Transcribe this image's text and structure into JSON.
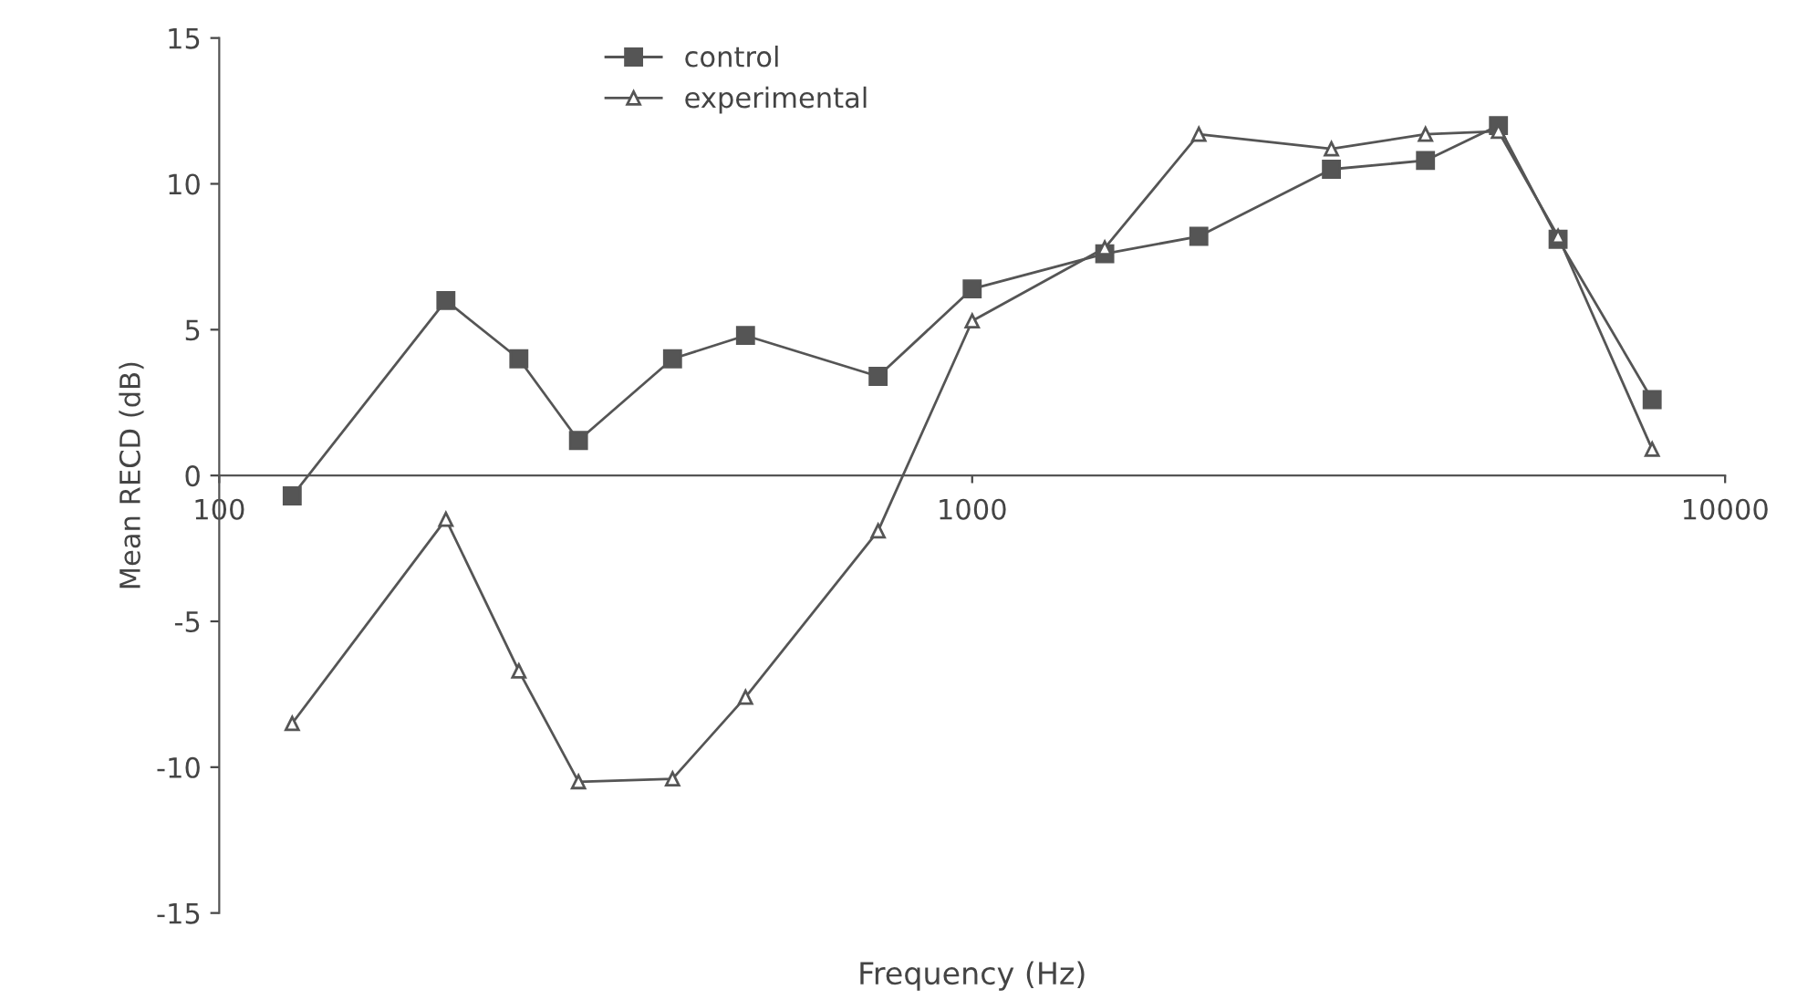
{
  "chart_data": {
    "type": "line",
    "xlabel": "Frequency (Hz)",
    "ylabel": "Mean RECD (dB)",
    "log": "x",
    "xlim": [
      100,
      10000
    ],
    "xticks": [
      100,
      1000,
      10000
    ],
    "ylim": [
      -15,
      15
    ],
    "yticks": [
      -15,
      -10,
      -5,
      0,
      5,
      10,
      15
    ],
    "grid": false,
    "legend": "top left",
    "line_style": "solid",
    "series": [
      {
        "name": "control",
        "color": "#555555",
        "marker": "square",
        "x": [
          125,
          200,
          250,
          300,
          400,
          500,
          750,
          1000,
          1500,
          2000,
          3000,
          4000,
          5000,
          6000,
          8000
        ],
        "values": [
          -0.7,
          6.0,
          4.0,
          1.2,
          4.0,
          4.8,
          3.4,
          6.4,
          7.6,
          8.2,
          10.5,
          10.8,
          12.0,
          8.1,
          2.6
        ]
      },
      {
        "name": "experimental",
        "color": "#555555",
        "marker": "triangle",
        "x": [
          125,
          200,
          250,
          300,
          400,
          500,
          750,
          1000,
          1500,
          2000,
          3000,
          4000,
          5000,
          6000,
          8000
        ],
        "values": [
          -8.5,
          -1.5,
          -6.7,
          -10.5,
          -10.4,
          -7.6,
          -1.9,
          5.3,
          7.8,
          11.7,
          11.2,
          11.7,
          11.8,
          8.2,
          0.9
        ]
      }
    ]
  }
}
